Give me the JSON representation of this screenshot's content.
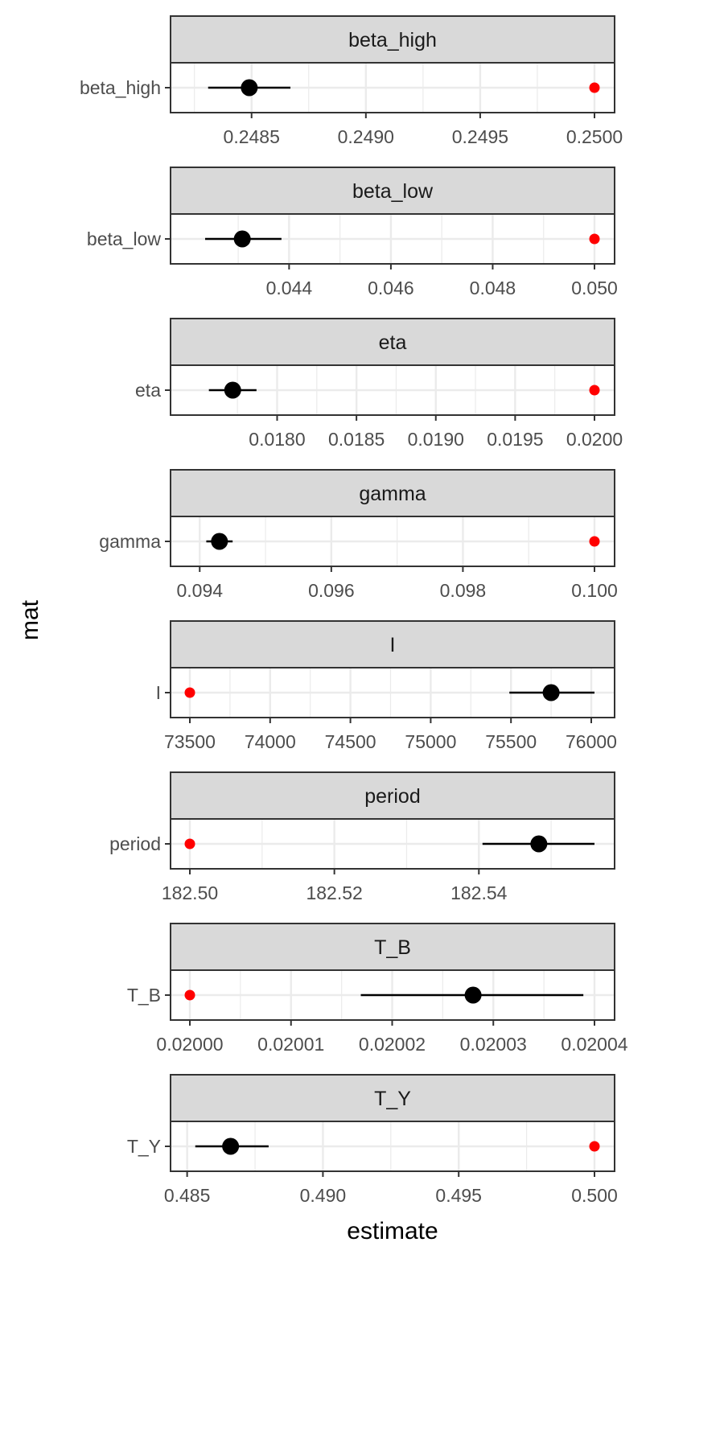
{
  "chart_data": {
    "type": "scatter",
    "xlabel": "estimate",
    "ylabel": "mat",
    "legend": "none",
    "grid": true,
    "facets": [
      {
        "name": "beta_high",
        "y_label": "beta_high",
        "xlim": [
          0.24823,
          0.25
        ],
        "ticks": [
          "0.2485",
          "0.2490",
          "0.2495",
          "0.2500"
        ],
        "tick_values": [
          0.2485,
          0.249,
          0.2495,
          0.25
        ],
        "estimate": 0.24849,
        "lower": 0.24831,
        "upper": 0.24867,
        "true_value": 0.25
      },
      {
        "name": "beta_low",
        "y_label": "beta_low",
        "xlim": [
          0.04205,
          0.05
        ],
        "ticks": [
          "0.044",
          "0.046",
          "0.048",
          "0.050"
        ],
        "tick_values": [
          0.044,
          0.046,
          0.048,
          0.05
        ],
        "estimate": 0.04308,
        "lower": 0.04235,
        "upper": 0.04385,
        "true_value": 0.05
      },
      {
        "name": "eta",
        "y_label": "eta",
        "xlim": [
          0.01745,
          0.02
        ],
        "ticks": [
          "0.0180",
          "0.0185",
          "0.0190",
          "0.0195",
          "0.0200"
        ],
        "tick_values": [
          0.018,
          0.0185,
          0.019,
          0.0195,
          0.02
        ],
        "estimate": 0.01772,
        "lower": 0.01757,
        "upper": 0.01787,
        "true_value": 0.02
      },
      {
        "name": "gamma",
        "y_label": "gamma",
        "xlim": [
          0.09385,
          0.1
        ],
        "ticks": [
          "0.094",
          "0.096",
          "0.098",
          "0.100"
        ],
        "tick_values": [
          0.094,
          0.096,
          0.098,
          0.1
        ],
        "estimate": 0.0943,
        "lower": 0.0941,
        "upper": 0.0945,
        "true_value": 0.1
      },
      {
        "name": "I",
        "y_label": "I",
        "xlim": [
          73500,
          76020
        ],
        "ticks": [
          "73500",
          "74000",
          "74500",
          "75000",
          "75500",
          "76000"
        ],
        "tick_values": [
          73500,
          74000,
          74500,
          75000,
          75500,
          76000
        ],
        "estimate": 75750,
        "lower": 75490,
        "upper": 76020,
        "true_value": 73500
      },
      {
        "name": "period",
        "y_label": "period",
        "xlim": [
          182.5,
          182.556
        ],
        "ticks": [
          "182.50",
          "182.52",
          "182.54"
        ],
        "tick_values": [
          182.5,
          182.52,
          182.54
        ],
        "estimate": 182.5483,
        "lower": 182.5405,
        "upper": 182.556,
        "true_value": 182.5
      },
      {
        "name": "T_B",
        "y_label": "T_B",
        "xlim": [
          0.02,
          0.02004
        ],
        "ticks": [
          "0.02000",
          "0.02001",
          "0.02002",
          "0.02003",
          "0.02004"
        ],
        "tick_values": [
          0.02,
          0.02001,
          0.02002,
          0.02003,
          0.02004
        ],
        "estimate": 0.020028,
        "lower": 0.0200169,
        "upper": 0.0200389,
        "true_value": 0.02
      },
      {
        "name": "T_Y",
        "y_label": "T_Y",
        "xlim": [
          0.4851,
          0.5
        ],
        "ticks": [
          "0.485",
          "0.490",
          "0.495",
          "0.500"
        ],
        "tick_values": [
          0.485,
          0.49,
          0.495,
          0.5
        ],
        "estimate": 0.4866,
        "lower": 0.4853,
        "upper": 0.488,
        "true_value": 0.5
      }
    ],
    "colors": {
      "estimate": "#000000",
      "true_value": "#ff0000",
      "strip_fill": "#d9d9d9",
      "panel_border": "#333333",
      "grid": "#ebebeb"
    }
  }
}
